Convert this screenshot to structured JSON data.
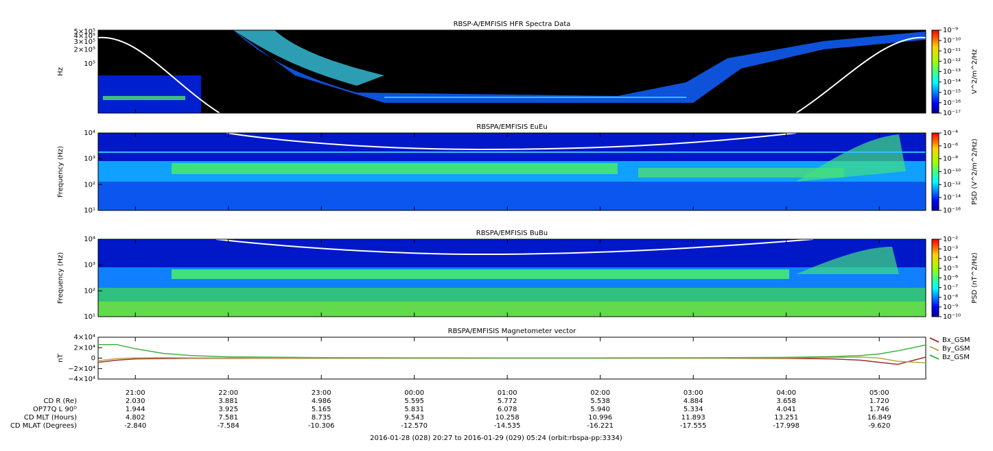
{
  "chart_data": [
    {
      "type": "spectrogram",
      "title": "RBSP-A/EMFISIS  HFR Spectra Data",
      "ylabel": "Hz",
      "log_y": true,
      "ylim": [
        8400,
        535000
      ],
      "yticks": [
        {
          "value": 100000,
          "label": "10⁵"
        },
        {
          "value": 200000,
          "label": "2×10⁵"
        },
        {
          "value": 300000,
          "label": "3×10⁵"
        },
        {
          "value": 400000,
          "label": "4×10⁵"
        },
        {
          "value": 500000,
          "label": "5×10⁵"
        }
      ],
      "colorbar_label": "V^2/m^2/Hz",
      "zlim": [
        1e-17,
        1e-09
      ],
      "zticks": [
        {
          "value": 1e-09,
          "label": "10⁻⁹"
        },
        {
          "value": 1e-10,
          "label": "10⁻¹⁰"
        },
        {
          "value": 1e-11,
          "label": "10⁻¹¹"
        },
        {
          "value": 1e-12,
          "label": "10⁻¹²"
        },
        {
          "value": 1e-13,
          "label": "10⁻¹³"
        },
        {
          "value": 1e-14,
          "label": "10⁻¹⁴"
        },
        {
          "value": 1e-15,
          "label": "10⁻¹⁵"
        },
        {
          "value": 1e-16,
          "label": "10⁻¹⁶"
        },
        {
          "value": 1e-17,
          "label": "10⁻¹⁷"
        }
      ]
    },
    {
      "type": "spectrogram",
      "title": "RBSPA/EMFISIS  EuEu",
      "ylabel": "Frequency (Hz)",
      "log_y": true,
      "ylim": [
        10,
        10000
      ],
      "yticks": [
        {
          "value": 10,
          "label": "10¹"
        },
        {
          "value": 100,
          "label": "10²"
        },
        {
          "value": 1000,
          "label": "10³"
        },
        {
          "value": 10000,
          "label": "10⁴"
        }
      ],
      "colorbar_label": "PSD (V^2/m^2/Hz)",
      "zlim": [
        1e-16,
        0.0001
      ],
      "zticks": [
        {
          "value": 0.0001,
          "label": "10⁻⁴"
        },
        {
          "value": 1e-06,
          "label": "10⁻⁶"
        },
        {
          "value": 1e-08,
          "label": "10⁻⁸"
        },
        {
          "value": 1e-10,
          "label": "10⁻¹⁰"
        },
        {
          "value": 1e-12,
          "label": "10⁻¹²"
        },
        {
          "value": 1e-14,
          "label": "10⁻¹⁴"
        },
        {
          "value": 1e-16,
          "label": "10⁻¹⁶"
        }
      ]
    },
    {
      "type": "spectrogram",
      "title": "RBSPA/EMFISIS  BuBu",
      "ylabel": "Frequency (Hz)",
      "log_y": true,
      "ylim": [
        10,
        10000
      ],
      "yticks": [
        {
          "value": 10,
          "label": "10¹"
        },
        {
          "value": 100,
          "label": "10²"
        },
        {
          "value": 1000,
          "label": "10³"
        },
        {
          "value": 10000,
          "label": "10⁴"
        }
      ],
      "colorbar_label": "PSD (nT^2/Hz)",
      "zlim": [
        1e-10,
        0.01
      ],
      "zticks": [
        {
          "value": 0.01,
          "label": "10⁻²"
        },
        {
          "value": 0.001,
          "label": "10⁻³"
        },
        {
          "value": 0.0001,
          "label": "10⁻⁴"
        },
        {
          "value": 1e-05,
          "label": "10⁻⁵"
        },
        {
          "value": 1e-06,
          "label": "10⁻⁶"
        },
        {
          "value": 1e-07,
          "label": "10⁻⁷"
        },
        {
          "value": 1e-08,
          "label": "10⁻⁸"
        },
        {
          "value": 1e-09,
          "label": "10⁻⁹"
        },
        {
          "value": 1e-10,
          "label": "10⁻¹⁰"
        }
      ]
    },
    {
      "type": "line",
      "title": "RBSPA/EMFISIS  Magnetometer vector",
      "ylabel": "nT",
      "ylim": [
        -40000,
        40000
      ],
      "yticks": [
        {
          "value": 40000,
          "label": "4×10⁴"
        },
        {
          "value": 20000,
          "label": "2×10⁴"
        },
        0,
        {
          "value": -20000,
          "label": "−2×10⁴"
        },
        {
          "value": -40000,
          "label": "−4×10⁴"
        }
      ],
      "xlim": [
        20.6,
        29.5
      ],
      "xticks": [
        {
          "value": 21,
          "label": "21:00"
        },
        {
          "value": 22,
          "label": "22:00"
        },
        {
          "value": 23,
          "label": "23:00"
        },
        {
          "value": 24,
          "label": "00:00"
        },
        {
          "value": 25,
          "label": "01:00"
        },
        {
          "value": 26,
          "label": "02:00"
        },
        {
          "value": 27,
          "label": "03:00"
        },
        {
          "value": 28,
          "label": "04:00"
        },
        {
          "value": 29,
          "label": "05:00"
        }
      ],
      "x": [
        20.6,
        20.8,
        21,
        21.3,
        21.6,
        22,
        23,
        24,
        25,
        26,
        27,
        28,
        28.5,
        28.8,
        29,
        29.2,
        29.5
      ],
      "series": [
        {
          "name": "Bx_GSM",
          "color": "#a03028",
          "values": [
            -8000,
            -4000,
            -1500,
            -800,
            -400,
            -200,
            -100,
            0,
            0,
            0,
            0,
            -500,
            -1500,
            -4000,
            -8000,
            -12000,
            2000
          ]
        },
        {
          "name": "By_GSM",
          "color": "#b8a448",
          "values": [
            -5000,
            -1000,
            500,
            800,
            500,
            300,
            100,
            0,
            0,
            0,
            0,
            500,
            1500,
            2000,
            0,
            -6000,
            -9000
          ]
        },
        {
          "name": "Bz_GSM",
          "color": "#40b040",
          "values": [
            26000,
            26000,
            18000,
            9000,
            5000,
            2500,
            1000,
            500,
            300,
            400,
            600,
            1500,
            3000,
            5000,
            8000,
            14000,
            25000
          ]
        }
      ]
    }
  ],
  "ephemeris": [
    {
      "label": "CD R (Re)",
      "values": [
        "2.030",
        "3.881",
        "4.986",
        "5.595",
        "5.772",
        "5.538",
        "4.884",
        "3.658",
        "1.720"
      ]
    },
    {
      "label": "OP77Q L 90ᴰ",
      "values": [
        "1.944",
        "3.925",
        "5.165",
        "5.831",
        "6.078",
        "5.940",
        "5.334",
        "4.041",
        "1.746"
      ]
    },
    {
      "label": "CD MLT (Hours)",
      "values": [
        "4.802",
        "7.581",
        "8.735",
        "9.543",
        "10.258",
        "10.996",
        "11.893",
        "13.251",
        "16.849"
      ]
    },
    {
      "label": "CD MLAT (Degrees)",
      "values": [
        "-2.840",
        "-7.584",
        "-10.306",
        "-12.570",
        "-14.535",
        "-16.221",
        "-17.555",
        "-17.998",
        "-9.620"
      ]
    }
  ],
  "footer": "2016-01-28 (028) 20:27 to 2016-01-29 (029) 05:24 (orbit:rbspa-pp:3334)"
}
